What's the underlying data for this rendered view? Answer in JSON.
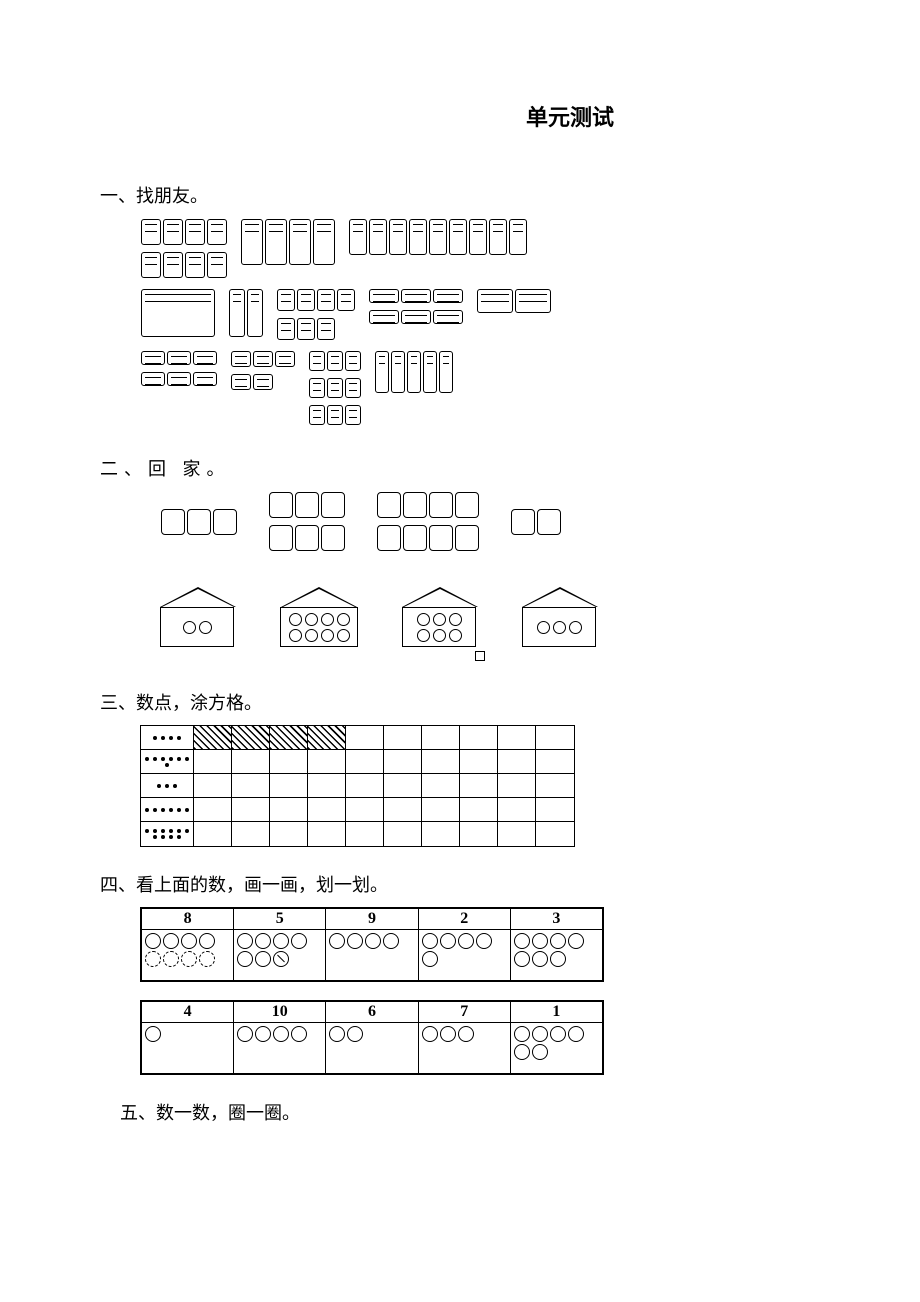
{
  "title": "单元测试",
  "sections": {
    "s1": {
      "heading": "一、找朋友。"
    },
    "s2": {
      "heading": "二、回   家。"
    },
    "s3": {
      "heading": "三、数点，涂方格。"
    },
    "s4": {
      "heading": "四、看上面的数，画一画，划一划。"
    },
    "s5": {
      "heading": "五、数一数，圈一圈。"
    }
  },
  "s1_rows": [
    [
      {
        "count": 8,
        "cols": 4,
        "item_w": 18,
        "item_h": 24
      },
      {
        "count": 4,
        "cols": 4,
        "item_w": 20,
        "item_h": 44
      },
      {
        "count": 9,
        "cols": 9,
        "item_w": 16,
        "item_h": 34
      }
    ],
    [
      {
        "count": 1,
        "cols": 1,
        "item_w": 72,
        "item_h": 46
      },
      {
        "count": 2,
        "cols": 2,
        "item_w": 14,
        "item_h": 46
      },
      {
        "count": 7,
        "cols": 4,
        "item_w": 16,
        "item_h": 20
      },
      {
        "count": 6,
        "cols": 3,
        "item_w": 28,
        "item_h": 12
      },
      {
        "count": 2,
        "cols": 2,
        "item_w": 34,
        "item_h": 22
      }
    ],
    [
      {
        "count": 6,
        "cols": 3,
        "item_w": 22,
        "item_h": 12
      },
      {
        "count": 5,
        "cols": 3,
        "item_w": 18,
        "item_h": 14
      },
      {
        "count": 9,
        "cols": 3,
        "item_w": 14,
        "item_h": 18
      },
      {
        "count": 5,
        "cols": 5,
        "item_w": 12,
        "item_h": 40
      }
    ]
  ],
  "s2_top_clusters": [
    {
      "count": 3,
      "cols": 3
    },
    {
      "count": 6,
      "cols": 3
    },
    {
      "count": 8,
      "cols": 4
    },
    {
      "count": 2,
      "cols": 2
    }
  ],
  "s2_houses": [
    {
      "dots": 2,
      "rows": 1
    },
    {
      "dots": 8,
      "rows": 2
    },
    {
      "dots": 6,
      "rows": 2
    },
    {
      "dots": 3,
      "rows": 2
    }
  ],
  "s3": {
    "cols": 10,
    "rows": [
      {
        "dots": 4,
        "shaded": 4
      },
      {
        "dots": 7,
        "shaded": 0
      },
      {
        "dots": 3,
        "shaded": 0
      },
      {
        "dots": 6,
        "shaded": 0
      },
      {
        "dots": 10,
        "shaded": 0
      }
    ]
  },
  "s4_tables": [
    [
      {
        "num": "8",
        "circles": [
          "s",
          "s",
          "s",
          "s",
          "d",
          "d",
          "d",
          "d"
        ]
      },
      {
        "num": "5",
        "circles": [
          "s",
          "s",
          "s",
          "s",
          "s",
          "s",
          "x"
        ]
      },
      {
        "num": "9",
        "circles": [
          "s",
          "s",
          "s",
          "s"
        ]
      },
      {
        "num": "2",
        "circles": [
          "s",
          "s",
          "s",
          "s",
          "s"
        ]
      },
      {
        "num": "3",
        "circles": [
          "s",
          "s",
          "s",
          "s",
          "s",
          "s",
          "s"
        ]
      }
    ],
    [
      {
        "num": "4",
        "circles": [
          "s"
        ]
      },
      {
        "num": "10",
        "circles": [
          "s",
          "s",
          "s",
          "s"
        ]
      },
      {
        "num": "6",
        "circles": [
          "s",
          "s"
        ]
      },
      {
        "num": "7",
        "circles": [
          "s",
          "s",
          "s"
        ]
      },
      {
        "num": "1",
        "circles": [
          "s",
          "s",
          "s",
          "s",
          "s",
          "s"
        ]
      }
    ]
  ],
  "colors": {
    "fg": "#000000",
    "bg": "#ffffff"
  }
}
